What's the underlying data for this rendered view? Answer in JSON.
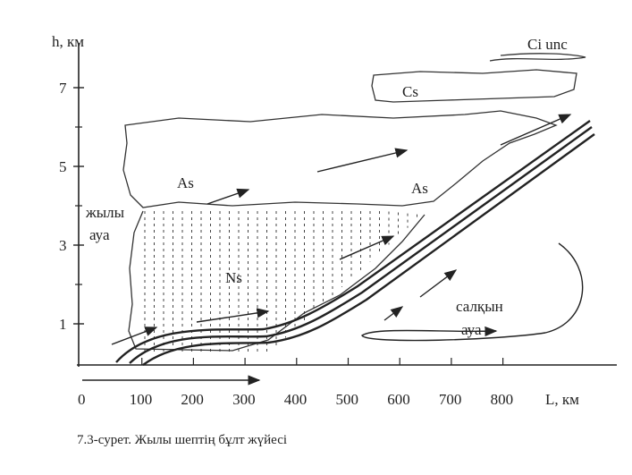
{
  "diagram": {
    "y_axis": {
      "label": "h, км",
      "ticks": [
        "1",
        "3",
        "5",
        "7"
      ]
    },
    "x_axis": {
      "label": "L, км",
      "ticks": [
        "0",
        "100",
        "200",
        "300",
        "400",
        "500",
        "600",
        "700",
        "800"
      ]
    },
    "clouds": {
      "ci": "Ci unc",
      "cs": "Cs",
      "as_left": "As",
      "as_right": "As",
      "ns": "Ns"
    },
    "air": {
      "warm": [
        "жылы",
        "ауа"
      ],
      "cold": [
        "салқын",
        "ауа"
      ]
    },
    "caption": "7.3-сурет. Жылы шептің бұлт жүйесі"
  }
}
